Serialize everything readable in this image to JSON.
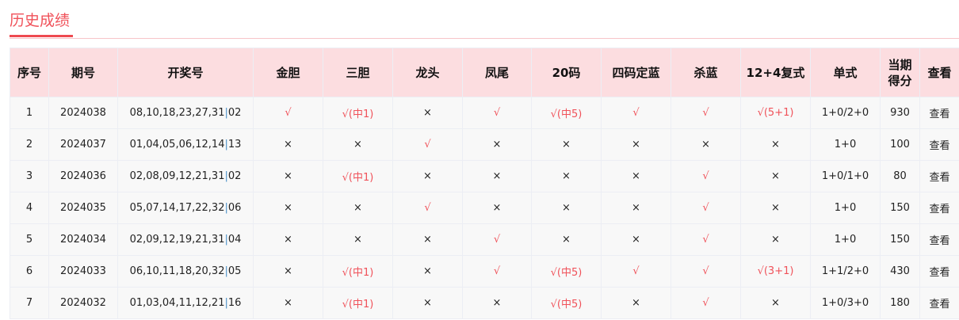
{
  "title": "历史成绩",
  "headers": [
    "序号",
    "期号",
    "开奖号",
    "金胆",
    "三胆",
    "龙头",
    "凤尾",
    "20码",
    "四码定蓝",
    "杀蓝",
    "12+4复式",
    "单式",
    "当期得分",
    "查看"
  ],
  "colors": {
    "accent": "#f0525a",
    "header_bg": "#fcdde0"
  },
  "rows": [
    {
      "no": "1",
      "issue": "2024038",
      "red": "08,10,18,23,27,31",
      "blue": "02",
      "cells": [
        "√",
        "√(中1)",
        "×",
        "√",
        "√(中5)",
        "√",
        "√",
        "√(5+1)"
      ],
      "single": "1+0/2+0",
      "score": "930",
      "view": "查看"
    },
    {
      "no": "2",
      "issue": "2024037",
      "red": "01,04,05,06,12,14",
      "blue": "13",
      "cells": [
        "×",
        "×",
        "√",
        "×",
        "×",
        "×",
        "×",
        "×"
      ],
      "single": "1+0",
      "score": "100",
      "view": "查看"
    },
    {
      "no": "3",
      "issue": "2024036",
      "red": "02,08,09,12,21,31",
      "blue": "02",
      "cells": [
        "×",
        "√(中1)",
        "×",
        "×",
        "×",
        "×",
        "√",
        "×"
      ],
      "single": "1+0/1+0",
      "score": "80",
      "view": "查看"
    },
    {
      "no": "4",
      "issue": "2024035",
      "red": "05,07,14,17,22,32",
      "blue": "06",
      "cells": [
        "×",
        "×",
        "√",
        "×",
        "×",
        "×",
        "√",
        "×"
      ],
      "single": "1+0",
      "score": "150",
      "view": "查看"
    },
    {
      "no": "5",
      "issue": "2024034",
      "red": "02,09,12,19,21,31",
      "blue": "04",
      "cells": [
        "×",
        "×",
        "×",
        "√",
        "×",
        "×",
        "√",
        "×"
      ],
      "single": "1+0",
      "score": "150",
      "view": "查看"
    },
    {
      "no": "6",
      "issue": "2024033",
      "red": "06,10,11,18,20,32",
      "blue": "05",
      "cells": [
        "×",
        "√(中1)",
        "×",
        "√",
        "√(中5)",
        "√",
        "√",
        "√(3+1)"
      ],
      "single": "1+1/2+0",
      "score": "430",
      "view": "查看"
    },
    {
      "no": "7",
      "issue": "2024032",
      "red": "01,03,04,11,12,21",
      "blue": "16",
      "cells": [
        "×",
        "√(中1)",
        "×",
        "×",
        "√(中5)",
        "×",
        "√",
        "×"
      ],
      "single": "1+0/3+0",
      "score": "180",
      "view": "查看"
    }
  ]
}
